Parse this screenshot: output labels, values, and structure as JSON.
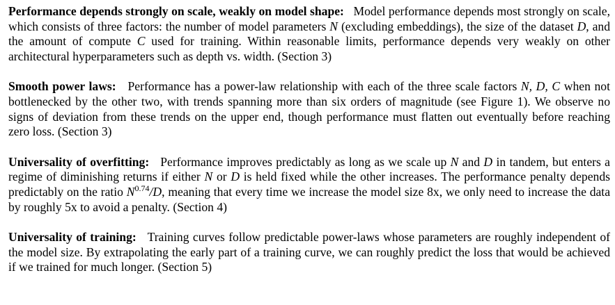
{
  "paragraphs": [
    {
      "lead": "Performance depends strongly on scale, weakly on model shape:",
      "segments": [
        {
          "t": "Model performance depends most strongly on scale, which consists of three factors: the number of model parameters "
        },
        {
          "m": "N"
        },
        {
          "t": " (excluding embed­dings), the size of the dataset "
        },
        {
          "m": "D"
        },
        {
          "t": ", and the amount of compute "
        },
        {
          "m": "C"
        },
        {
          "t": " used for training. Within reasonable limits, performance depends very weakly on other architectural hyperparameters such as depth vs. width. (Section 3)"
        }
      ]
    },
    {
      "lead": "Smooth power laws:",
      "segments": [
        {
          "t": "Performance has a power-law relationship with each of the three scale factors "
        },
        {
          "m": "N, D, C"
        },
        {
          "t": " when not bottlenecked by the other two, with trends spanning more than six orders of magnitude (see Figure 1). We observe no signs of deviation from these trends on the upper end, though performance must flatten out eventually before reaching zero loss. (Section 3)"
        }
      ]
    },
    {
      "lead": "Universality of overfitting:",
      "segments": [
        {
          "t": "Performance improves predictably as long as we scale up "
        },
        {
          "m": "N"
        },
        {
          "t": " and "
        },
        {
          "m": "D"
        },
        {
          "t": " in tandem, but enters a regime of diminishing returns if either "
        },
        {
          "m": "N"
        },
        {
          "t": " or "
        },
        {
          "m": "D"
        },
        {
          "t": " is held fixed while the other increases. The performance penalty depends predictably on the ratio "
        },
        {
          "m": "N",
          "sup": "0.74"
        },
        {
          "m": "/D"
        },
        {
          "t": ", meaning that every time we increase the model size 8x, we only need to increase the data by roughly 5x to avoid a penalty. (Section 4)"
        }
      ]
    },
    {
      "lead": "Universality of training:",
      "segments": [
        {
          "t": "Training curves follow predictable power-laws whose parameters are roughly independent of the model size. By extrapolating the early part of a training curve, we can roughly predict the loss that would be achieved if we trained for much longer. (Section 5)"
        }
      ]
    }
  ]
}
